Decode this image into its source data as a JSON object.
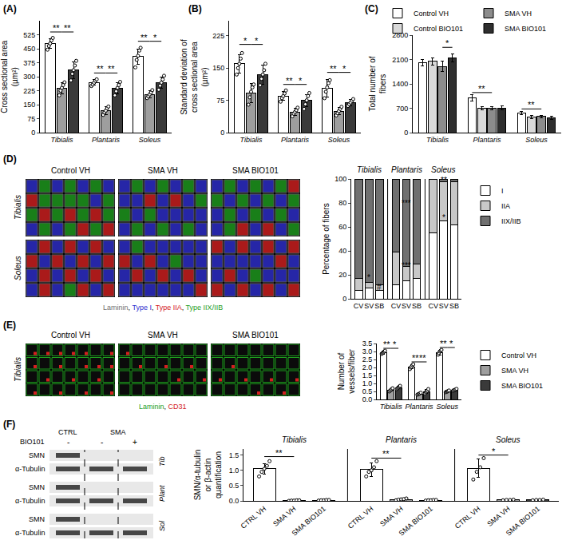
{
  "chart_data": [
    {
      "panel": "(A)",
      "type": "bar",
      "y_label": "Cross sectional area (µm²)",
      "categories": [
        "Tibialis",
        "Plantaris",
        "Soleus"
      ],
      "series": [
        {
          "name": "Control VH",
          "color": "#ffffff",
          "values": [
            478,
            268,
            408
          ],
          "errors": [
            25,
            15,
            42
          ],
          "points": [
            [
              445,
              465,
              478,
              495,
              508
            ],
            [
              250,
              258,
              268,
              278,
              286
            ],
            [
              350,
              390,
              412,
              440,
              455
            ]
          ]
        },
        {
          "name": "SMA VH",
          "color": "#9e9e9e",
          "values": [
            238,
            118,
            205
          ],
          "errors": [
            28,
            20,
            18
          ],
          "points": [
            [
              200,
              225,
              240,
              255,
              270
            ],
            [
              95,
              108,
              118,
              130,
              140
            ],
            [
              185,
              195,
              205,
              215,
              228
            ]
          ]
        },
        {
          "name": "SMA BIO101",
          "color": "#3a3a3a",
          "values": [
            335,
            238,
            268
          ],
          "errors": [
            45,
            28,
            32
          ],
          "points": [
            [
              280,
              315,
              335,
              360,
              385
            ],
            [
              200,
              222,
              240,
              255,
              272
            ],
            [
              230,
              252,
              268,
              285,
              305
            ]
          ]
        }
      ],
      "ylim": [
        0,
        600
      ],
      "yticks": [
        0,
        75,
        150,
        225,
        300,
        375,
        450,
        525
      ],
      "significance": [
        {
          "category": 0,
          "from": 0,
          "to": 1,
          "y": 540,
          "text": "**"
        },
        {
          "category": 0,
          "from": 1,
          "to": 2,
          "y": 540,
          "text": "**"
        },
        {
          "category": 1,
          "from": 0,
          "to": 1,
          "y": 320,
          "text": "**"
        },
        {
          "category": 1,
          "from": 1,
          "to": 2,
          "y": 320,
          "text": "**"
        },
        {
          "category": 2,
          "from": 0,
          "to": 1,
          "y": 490,
          "text": "**"
        },
        {
          "category": 2,
          "from": 1,
          "to": 2,
          "y": 490,
          "text": "*"
        }
      ]
    },
    {
      "panel": "(B)",
      "type": "bar",
      "y_label": "Standard deviation of cross sectional area (µm²)",
      "categories": [
        "Tibialis",
        "Plantaris",
        "Soleus"
      ],
      "series": [
        {
          "name": "Control VH",
          "color": "#ffffff",
          "values": [
            160,
            85,
            103
          ],
          "errors": [
            22,
            10,
            20
          ],
          "points": [
            [
              135,
              150,
              160,
              172,
              185
            ],
            [
              72,
              80,
              85,
              91,
              98
            ],
            [
              80,
              95,
              105,
              115,
              122
            ]
          ]
        },
        {
          "name": "SMA VH",
          "color": "#9e9e9e",
          "values": [
            92,
            48,
            50
          ],
          "errors": [
            22,
            8,
            9
          ],
          "points": [
            [
              65,
              82,
              95,
              105,
              112
            ],
            [
              38,
              44,
              48,
              52,
              58
            ],
            [
              40,
              45,
              50,
              55,
              60
            ]
          ]
        },
        {
          "name": "SMA BIO101",
          "color": "#3a3a3a",
          "values": [
            135,
            75,
            70
          ],
          "errors": [
            22,
            14,
            7
          ],
          "points": [
            [
              110,
              125,
              135,
              145,
              160
            ],
            [
              55,
              66,
              75,
              85,
              92
            ],
            [
              62,
              66,
              70,
              74,
              78
            ]
          ]
        }
      ],
      "ylim": [
        0,
        260
      ],
      "yticks": [
        0,
        75,
        150,
        225
      ],
      "significance": [
        {
          "category": 0,
          "from": 0,
          "to": 1,
          "y": 205,
          "text": "*"
        },
        {
          "category": 0,
          "from": 1,
          "to": 2,
          "y": 205,
          "text": "*"
        },
        {
          "category": 1,
          "from": 0,
          "to": 1,
          "y": 112,
          "text": "**"
        },
        {
          "category": 1,
          "from": 1,
          "to": 2,
          "y": 112,
          "text": "*"
        },
        {
          "category": 2,
          "from": 0,
          "to": 1,
          "y": 140,
          "text": "**"
        },
        {
          "category": 2,
          "from": 1,
          "to": 2,
          "y": 140,
          "text": "*"
        }
      ]
    },
    {
      "panel": "(C)",
      "type": "bar",
      "y_label": "Total number of fibers",
      "categories": [
        "Tibialis",
        "Plantaris",
        "Soleus"
      ],
      "series": [
        {
          "name": "Control VH",
          "color": "#ffffff",
          "values": [
            2000,
            1000,
            570
          ],
          "errors": [
            90,
            90,
            45
          ]
        },
        {
          "name": "Control BIO101",
          "color": "#d9d9d9",
          "values": [
            2050,
            690,
            450
          ],
          "errors": [
            100,
            45,
            40
          ]
        },
        {
          "name": "SMA VH",
          "color": "#8c8c8c",
          "values": [
            1900,
            700,
            460
          ],
          "errors": [
            150,
            50,
            35
          ]
        },
        {
          "name": "SMA BIO101",
          "color": "#2e2e2e",
          "values": [
            2150,
            710,
            430
          ],
          "errors": [
            120,
            60,
            40
          ]
        }
      ],
      "ylim": [
        0,
        2800
      ],
      "yticks": [
        0,
        700,
        1400,
        2100,
        2800
      ],
      "legend": "top",
      "significance": [
        {
          "category": 0,
          "from": 2,
          "to": 3,
          "y": 2450,
          "text": "*"
        },
        {
          "category": 1,
          "from": 0,
          "to": 2,
          "y": 1150,
          "text": "**"
        },
        {
          "category": 2,
          "from": 0,
          "to": 2,
          "y": 680,
          "text": "**"
        }
      ]
    },
    {
      "panel": "(D)",
      "type": "bar",
      "stacked": true,
      "y_label": "Percentage of fibers",
      "groups": [
        "Tibialis",
        "Plantaris",
        "Soleus"
      ],
      "categories": [
        "CV",
        "SV",
        "SB",
        "CV",
        "SV",
        "SB",
        "CV",
        "SV",
        "SB"
      ],
      "series": [
        {
          "name": "I",
          "color": "#ffffff",
          "values": [
            7,
            9,
            7,
            12,
            15,
            17,
            55,
            65,
            62
          ]
        },
        {
          "name": "IIA",
          "color": "#c8c8c8",
          "values": [
            10,
            5,
            5,
            27,
            12,
            12,
            45,
            33,
            36
          ]
        },
        {
          "name": "IIX/IIB",
          "color": "#707070",
          "values": [
            83,
            86,
            88,
            61,
            73,
            71,
            0,
            2,
            2
          ]
        }
      ],
      "ylim": [
        0,
        100
      ],
      "yticks": [
        0,
        20,
        40,
        60,
        80,
        100
      ],
      "legend": "right",
      "marks": [
        {
          "index": 1,
          "y": 18,
          "text": "*"
        },
        {
          "index": 2,
          "y": 10,
          "text": "#"
        },
        {
          "index": 4,
          "y": 80,
          "text": "***"
        },
        {
          "index": 4,
          "y": 28,
          "text": "***"
        },
        {
          "index": 7,
          "y": 99,
          "text": "**"
        },
        {
          "index": 7,
          "y": 68,
          "text": "*"
        }
      ]
    },
    {
      "panel": "(E)",
      "type": "bar",
      "y_label": "Number of vessels/fiber",
      "categories": [
        "Tibialis",
        "Plantaris",
        "Soleus"
      ],
      "series": [
        {
          "name": "Control VH",
          "color": "#ffffff",
          "values": [
            2.95,
            2.05,
            2.95
          ],
          "errors": [
            0.1,
            0.12,
            0.15
          ],
          "points": [
            [
              2.85,
              2.9,
              2.95,
              3.0,
              3.05
            ],
            [
              1.9,
              2.0,
              2.05,
              2.15,
              2.2
            ],
            [
              2.8,
              2.9,
              3.0,
              3.05,
              3.1
            ]
          ]
        },
        {
          "name": "SMA VH",
          "color": "#9e9e9e",
          "values": [
            0.6,
            0.35,
            0.5
          ],
          "errors": [
            0.08,
            0.05,
            0.05
          ],
          "points": [
            [
              0.5,
              0.55,
              0.6,
              0.65,
              0.7
            ],
            [
              0.3,
              0.33,
              0.35,
              0.38,
              0.42
            ],
            [
              0.45,
              0.48,
              0.5,
              0.52,
              0.56
            ]
          ]
        },
        {
          "name": "SMA BIO101",
          "color": "#3a3a3a",
          "values": [
            0.75,
            0.5,
            0.6
          ],
          "errors": [
            0.08,
            0.12,
            0.05
          ],
          "points": [
            [
              0.65,
              0.7,
              0.75,
              0.8,
              0.85
            ],
            [
              0.38,
              0.45,
              0.5,
              0.55,
              0.65
            ],
            [
              0.55,
              0.58,
              0.6,
              0.62,
              0.66
            ]
          ]
        }
      ],
      "ylim": [
        0,
        3.5
      ],
      "yticks": [
        {
          "value": 0,
          "label": "0.0"
        },
        0.5,
        {
          "value": 1,
          "label": "1.0"
        },
        1.5,
        {
          "value": 2,
          "label": "2.0"
        },
        2.5,
        {
          "value": 3,
          "label": "3.0"
        },
        3.5
      ],
      "legend": "right",
      "significance": [
        {
          "category": 0,
          "from": 0,
          "to": 1,
          "y": 3.2,
          "text": "**"
        },
        {
          "category": 0,
          "from": 1,
          "to": 2,
          "y": 3.2,
          "text": "*"
        },
        {
          "category": 1,
          "from": 0,
          "to": 1,
          "y": 2.35,
          "text": "**"
        },
        {
          "category": 1,
          "from": 1,
          "to": 2,
          "y": 2.35,
          "text": "**"
        },
        {
          "category": 2,
          "from": 0,
          "to": 1,
          "y": 3.25,
          "text": "**"
        },
        {
          "category": 2,
          "from": 1,
          "to": 2,
          "y": 3.25,
          "text": "*"
        }
      ]
    },
    {
      "panel": "(F)",
      "type": "bar",
      "y_label": "SMN/α-tubulin or β-actin quantification",
      "groups": [
        "Tibialis",
        "Plantaris",
        "Soleus"
      ],
      "categories": [
        "CTRL VH",
        "SMA VH",
        "SMA BIO101",
        "CTRL VH",
        "SMA VH",
        "SMA BIO101",
        "CTRL VH",
        "SMA VH",
        "SMA BIO101"
      ],
      "values": [
        1.05,
        0.01,
        0.02,
        1.03,
        0.05,
        0.02,
        1.07,
        0.03,
        0.03
      ],
      "errors": [
        0.17,
        0.01,
        0.01,
        0.22,
        0.03,
        0.01,
        0.3,
        0.01,
        0.01
      ],
      "points": [
        [
          0.8,
          0.95,
          1.05,
          1.15,
          1.3
        ],
        [
          0,
          0.01,
          0.01,
          0.02,
          0.02
        ],
        [
          0.01,
          0.02,
          0.02,
          0.03,
          0.03
        ],
        [
          0.8,
          0.95,
          1.0,
          1.1,
          1.3
        ],
        [
          0.02,
          0.04,
          0.05,
          0.06,
          0.08
        ],
        [
          0.01,
          0.02,
          0.02,
          0.03,
          0.03
        ],
        [
          0.7,
          0.95,
          1.1,
          1.4
        ],
        [
          0.02,
          0.03,
          0.03,
          0.04
        ],
        [
          0.02,
          0.03,
          0.03,
          0.04
        ]
      ],
      "colors": [
        "#ffffff",
        "#9e9e9e",
        "#3a3a3a",
        "#ffffff",
        "#9e9e9e",
        "#3a3a3a",
        "#ffffff",
        "#9e9e9e",
        "#3a3a3a"
      ],
      "ylim": [
        0,
        1.7
      ],
      "yticks": [
        {
          "value": 0,
          "label": "0.0"
        },
        0.5,
        {
          "value": 1,
          "label": "1.0"
        },
        1.5
      ],
      "significance": [
        {
          "from": 0,
          "to": 1,
          "y": 1.45,
          "text": "**"
        },
        {
          "from": 3,
          "to": 4,
          "y": 1.4,
          "text": "**"
        },
        {
          "from": 6,
          "to": 7,
          "y": 1.5,
          "text": "*"
        }
      ]
    }
  ],
  "micrographs": [
    {
      "columns": [
        "Control VH",
        "SMA VH",
        "SMA BIO101"
      ],
      "rows": [
        "Tibialis",
        "Soleus"
      ],
      "stains": [
        {
          "text": "Laminin",
          "color": "#707070"
        },
        {
          "text": "Type I",
          "color": "#2f2fd0"
        },
        {
          "text": "Type IIA",
          "color": "#d42020"
        },
        {
          "text": "Type IIX/IIB",
          "color": "#1e9e1e"
        }
      ],
      "separator": ", "
    },
    {
      "columns": [
        "Control VH",
        "SMA VH",
        "SMA BIO101"
      ],
      "rows": [
        "Tibialis"
      ],
      "stains": [
        {
          "text": "Laminin",
          "color": "#1e9e1e"
        },
        {
          "text": "CD31",
          "color": "#d42020"
        }
      ],
      "separator": ", "
    }
  ],
  "blot": {
    "lanes": [
      "CTRL",
      "SMA"
    ],
    "treatment_label": "BIO101",
    "treatment": [
      "-",
      "-",
      "+"
    ],
    "muscles": [
      {
        "name": "Tib",
        "bands": [
          "SMN",
          "α-Tubulin"
        ]
      },
      {
        "name": "Plant",
        "bands": [
          "SMN",
          "α-Tubulin"
        ]
      },
      {
        "name": "Sol",
        "bands": [
          "SMN",
          "α-Tubulin"
        ]
      }
    ]
  }
}
